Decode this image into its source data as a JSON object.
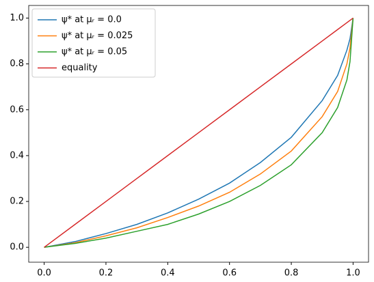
{
  "chart_data": {
    "type": "line",
    "x": [
      0,
      0.1,
      0.2,
      0.3,
      0.4,
      0.5,
      0.6,
      0.7,
      0.8,
      0.9,
      0.95,
      0.98,
      0.99,
      1
    ],
    "series": [
      {
        "name": "ψ* at μᵣ = 0.0",
        "color": "#1f77b4",
        "values": [
          0,
          0.025,
          0.06,
          0.1,
          0.15,
          0.21,
          0.28,
          0.37,
          0.48,
          0.64,
          0.75,
          0.86,
          0.91,
          1
        ]
      },
      {
        "name": "ψ* at μᵣ = 0.025",
        "color": "#ff7f0e",
        "values": [
          0,
          0.02,
          0.05,
          0.085,
          0.13,
          0.18,
          0.24,
          0.32,
          0.42,
          0.57,
          0.68,
          0.8,
          0.87,
          1
        ]
      },
      {
        "name": "ψ* at μᵣ = 0.05",
        "color": "#2ca02c",
        "values": [
          0,
          0.017,
          0.04,
          0.07,
          0.1,
          0.145,
          0.2,
          0.27,
          0.36,
          0.5,
          0.61,
          0.73,
          0.81,
          1
        ]
      },
      {
        "name": "equality",
        "color": "#d62728",
        "values": [
          0,
          0.1,
          0.2,
          0.3,
          0.4,
          0.5,
          0.6,
          0.7,
          0.8,
          0.9,
          0.95,
          0.98,
          0.99,
          1
        ]
      }
    ],
    "xlim": [
      -0.05,
      1.05
    ],
    "ylim": [
      -0.065,
      1.055
    ],
    "xticks": [
      {
        "value": 0,
        "label": "0.0"
      },
      0.2,
      0.4,
      0.6,
      0.8,
      {
        "value": 1,
        "label": "1.0"
      }
    ],
    "yticks": [
      {
        "value": 0,
        "label": "0.0"
      },
      0.2,
      0.4,
      0.6,
      0.8,
      {
        "value": 1,
        "label": "1.0"
      }
    ],
    "legend": "upper left",
    "grid": false
  }
}
